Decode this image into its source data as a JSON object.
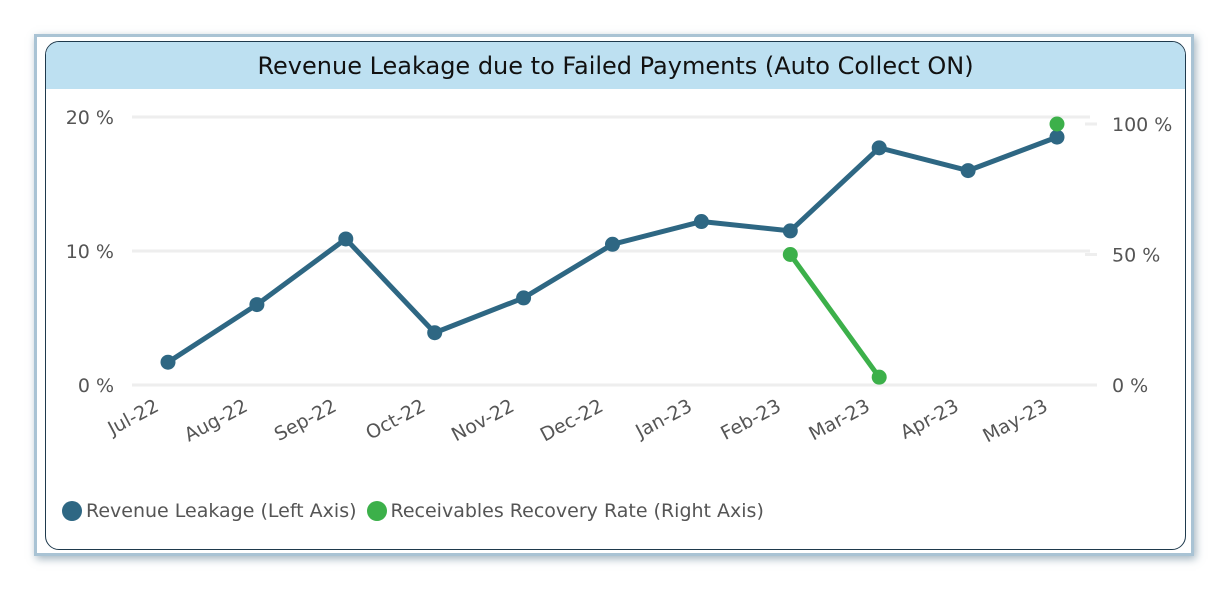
{
  "chart_data": {
    "type": "line",
    "title": "Revenue Leakage due to Failed Payments (Auto Collect ON)",
    "categories": [
      "Jul-22",
      "Aug-22",
      "Sep-22",
      "Oct-22",
      "Nov-22",
      "Dec-22",
      "Jan-23",
      "Feb-23",
      "Mar-23",
      "Apr-23",
      "May-23"
    ],
    "left_axis": {
      "ylim": [
        0,
        20
      ],
      "ticks": [
        0,
        10,
        20
      ],
      "tick_labels": [
        "0 %",
        "10 %",
        "20 %"
      ]
    },
    "right_axis": {
      "ylim": [
        0,
        100
      ],
      "ticks": [
        0,
        50,
        100
      ],
      "tick_labels": [
        "0 %",
        "50 %",
        "100 %"
      ]
    },
    "grid": true,
    "legend_position": "bottom-left",
    "series": [
      {
        "name": "Revenue Leakage (Left Axis)",
        "axis": "left",
        "color": "#2e6783",
        "values": [
          1.7,
          6.0,
          10.9,
          3.9,
          6.5,
          10.5,
          12.2,
          11.5,
          17.7,
          16.0,
          18.5
        ]
      },
      {
        "name": "Receivables Recovery Rate (Right Axis)",
        "axis": "right",
        "color": "#3cb04a",
        "values": [
          null,
          null,
          null,
          null,
          null,
          null,
          null,
          50,
          3,
          null,
          100
        ]
      }
    ]
  }
}
